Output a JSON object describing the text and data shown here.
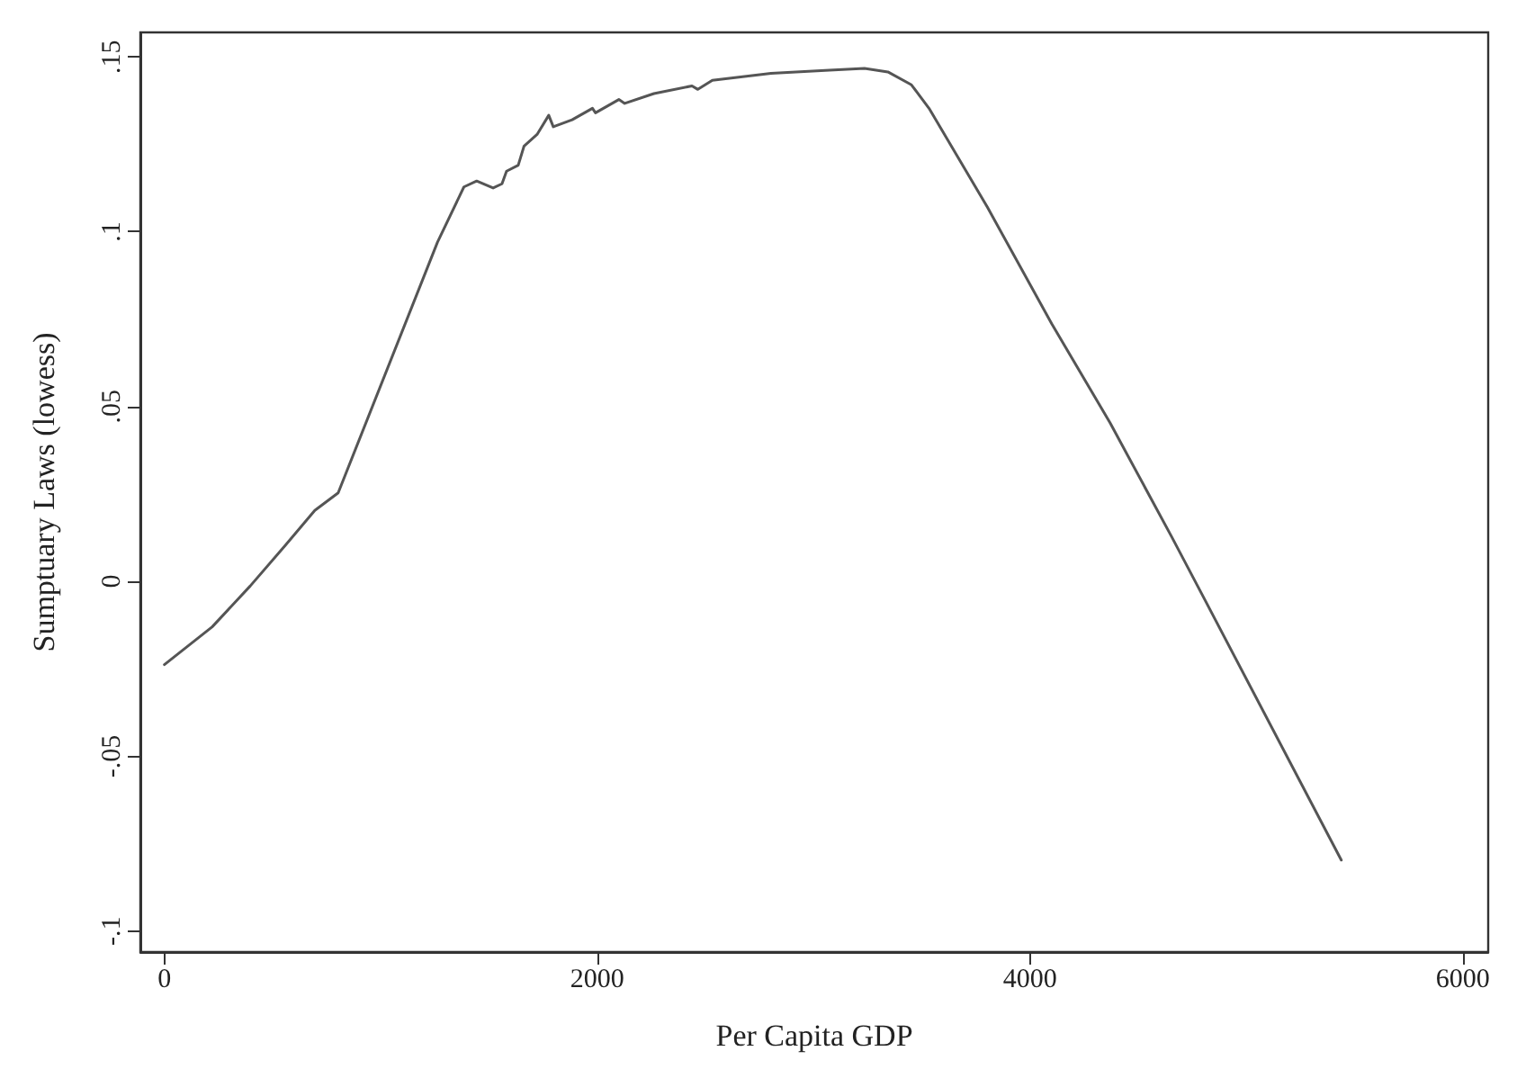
{
  "chart_data": {
    "type": "line",
    "xlabel": "Per Capita GDP",
    "ylabel": "Sumptuary Laws (lowess)",
    "xlim": [
      -111,
      6117
    ],
    "xticks": [
      0,
      2000,
      4000,
      6000
    ],
    "ylim": [
      -0.106,
      0.157
    ],
    "yticks": [
      {
        "value": 0.15,
        "label": ".15"
      },
      {
        "value": 0.1,
        "label": ".1"
      },
      {
        "value": 0.05,
        "label": ".05"
      },
      {
        "value": 0,
        "label": "0"
      },
      {
        "value": -0.05,
        "label": "-.05"
      },
      {
        "value": -0.1,
        "label": "-.1"
      }
    ],
    "grid": false,
    "marker": "none",
    "line_style": "solid",
    "series": [
      {
        "color": "#555555",
        "x": [
          0,
          221,
          397,
          559,
          695,
          803,
          1262,
          1384,
          1443,
          1519,
          1560,
          1581,
          1635,
          1662,
          1722,
          1776,
          1797,
          1884,
          1978,
          1992,
          2100,
          2127,
          2262,
          2438,
          2465,
          2532,
          2803,
          3073,
          3235,
          3343,
          3452,
          3533,
          3803,
          4100,
          4370,
          4654,
          4803,
          5438
        ],
        "values": [
          -0.0238,
          -0.013,
          -0.0013,
          0.0103,
          0.0203,
          0.0253,
          0.097,
          0.1128,
          0.1145,
          0.1125,
          0.1137,
          0.1173,
          0.119,
          0.1245,
          0.1278,
          0.1333,
          0.13,
          0.132,
          0.1353,
          0.134,
          0.1378,
          0.1367,
          0.1395,
          0.1417,
          0.1407,
          0.1433,
          0.1453,
          0.1462,
          0.1467,
          0.1457,
          0.142,
          0.1353,
          0.107,
          0.0737,
          0.0453,
          0.0128,
          -0.0047,
          -0.0797
        ]
      }
    ]
  }
}
